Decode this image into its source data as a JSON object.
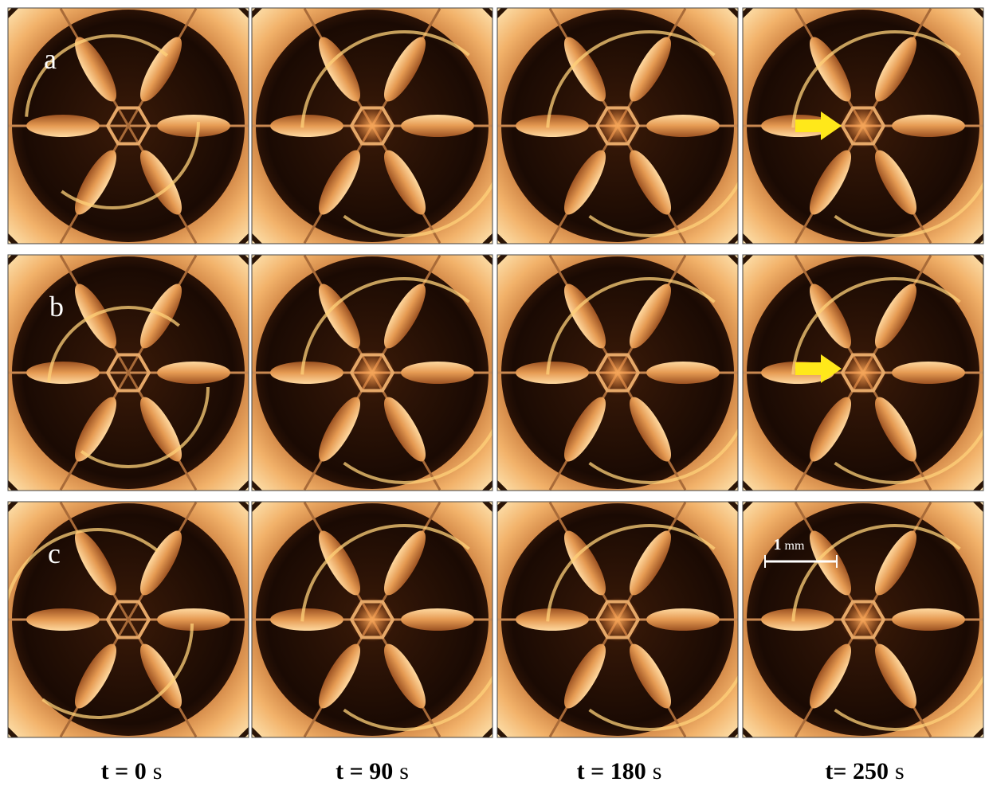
{
  "rows": [
    {
      "label": "a"
    },
    {
      "label": "b"
    },
    {
      "label": "c"
    }
  ],
  "times": [
    {
      "value": "t = 0",
      "unit": "s"
    },
    {
      "value": "t = 90",
      "unit": "s"
    },
    {
      "value": "t = 180",
      "unit": "s"
    },
    {
      "value": "t= 250",
      "unit": "s"
    }
  ],
  "scale_bar": {
    "value": "1",
    "unit": "mm"
  }
}
